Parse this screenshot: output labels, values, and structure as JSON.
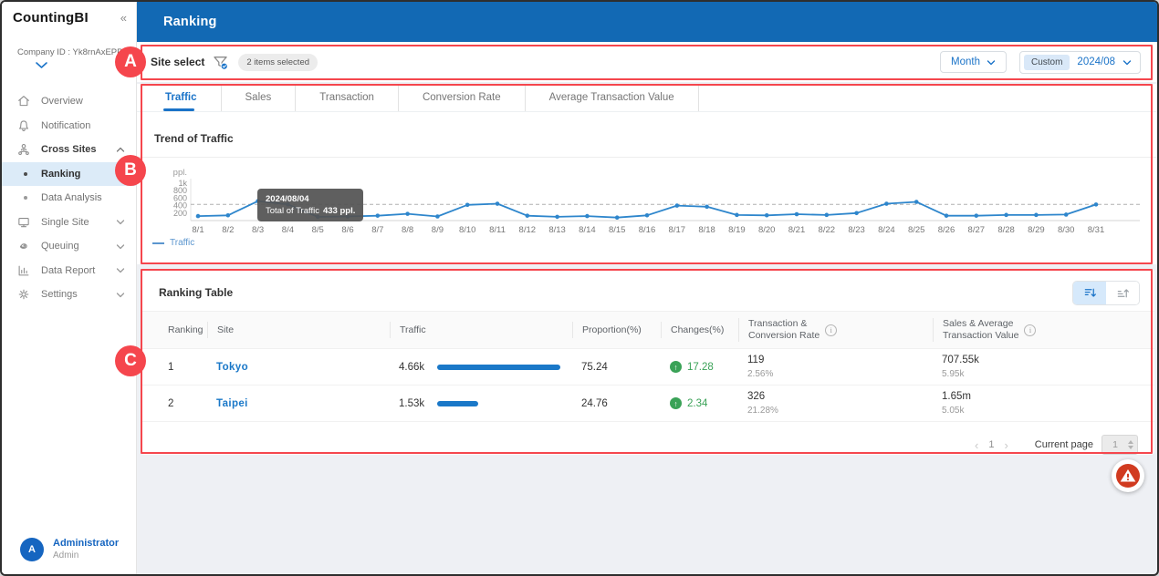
{
  "app": {
    "brand": "CountingBI",
    "page_title": "Ranking"
  },
  "icons": {
    "collapse": "«",
    "prev": "‹",
    "next": "›",
    "up_arrow": "↑",
    "info": "i"
  },
  "sidebar": {
    "company_id": "Company ID : Yk8rnAxEPPw3",
    "items": [
      {
        "label": "Overview"
      },
      {
        "label": "Notification"
      },
      {
        "label": "Cross Sites"
      },
      {
        "label": "Ranking"
      },
      {
        "label": "Data Analysis"
      },
      {
        "label": "Single Site"
      },
      {
        "label": "Queuing"
      },
      {
        "label": "Data Report"
      },
      {
        "label": "Settings"
      }
    ],
    "user": {
      "name": "Administrator",
      "role": "Admin",
      "initial": "A"
    }
  },
  "filter_bar": {
    "label": "Site select",
    "badge": "2 items selected",
    "period": "Month",
    "range_type": "Custom",
    "range_value": "2024/08"
  },
  "tabs": {
    "items": [
      {
        "label": "Traffic",
        "active": true
      },
      {
        "label": "Sales",
        "active": false
      },
      {
        "label": "Transaction",
        "active": false
      },
      {
        "label": "Conversion Rate",
        "active": false
      },
      {
        "label": "Average Transaction Value",
        "active": false
      }
    ]
  },
  "trend": {
    "title": "Trend of Traffic",
    "tooltip": {
      "date": "2024/08/04",
      "label": "Total of Traffic",
      "value": "433 ppl."
    }
  },
  "chart_data": {
    "type": "line",
    "title": "Trend of Traffic",
    "unit": "ppl.",
    "x": [
      "8/1",
      "8/2",
      "8/3",
      "8/4",
      "8/5",
      "8/6",
      "8/7",
      "8/8",
      "8/9",
      "8/10",
      "8/11",
      "8/12",
      "8/13",
      "8/14",
      "8/15",
      "8/16",
      "8/17",
      "8/18",
      "8/19",
      "8/20",
      "8/21",
      "8/22",
      "8/23",
      "8/24",
      "8/25",
      "8/26",
      "8/27",
      "8/28",
      "8/29",
      "8/30",
      "8/31"
    ],
    "series": [
      {
        "name": "Traffic",
        "values": [
          120,
          140,
          520,
          433,
          100,
          110,
          130,
          180,
          110,
          420,
          450,
          130,
          100,
          120,
          80,
          140,
          400,
          370,
          150,
          140,
          170,
          150,
          200,
          450,
          500,
          130,
          130,
          150,
          150,
          160,
          430
        ]
      }
    ],
    "ylim": [
      0,
      1000
    ],
    "yticks": [
      200,
      400,
      600,
      800,
      1000
    ],
    "ytick_labels": [
      "200",
      "400",
      "600",
      "800",
      "1k"
    ],
    "threshold": 433,
    "legend_position": "bottom-left",
    "grid": "dashed-threshold-only",
    "line_color": "#2e86cc"
  },
  "table": {
    "title": "Ranking Table",
    "columns": [
      {
        "label": "Ranking",
        "info": false
      },
      {
        "label": "Site",
        "info": false
      },
      {
        "label": "Traffic",
        "info": false
      },
      {
        "label": "Proportion(%)",
        "info": false
      },
      {
        "label": "Changes(%)",
        "info": false
      },
      {
        "label": "Transaction &\nConversion Rate",
        "info": true
      },
      {
        "label": "Sales & Average\nTransaction Value",
        "info": true
      }
    ],
    "rows": [
      {
        "ranking": "1",
        "site": "Tokyo",
        "traffic": "4.66k",
        "proportion": "75.24",
        "changes": "17.28",
        "transaction": "119",
        "conversion_rate": "2.56%",
        "sales": "707.55k",
        "avg_transaction_value": "5.95k",
        "bar_ratio": 75.24
      },
      {
        "ranking": "2",
        "site": "Taipei",
        "traffic": "1.53k",
        "proportion": "24.76",
        "changes": "2.34",
        "transaction": "326",
        "conversion_rate": "21.28%",
        "sales": "1.65m",
        "avg_transaction_value": "5.05k",
        "bar_ratio": 24.76
      }
    ],
    "pagination": {
      "page": "1",
      "label": "Current page",
      "input_value": "1"
    }
  },
  "annotations": {
    "color": "#f5464d",
    "labels": [
      "A",
      "B",
      "C"
    ]
  }
}
